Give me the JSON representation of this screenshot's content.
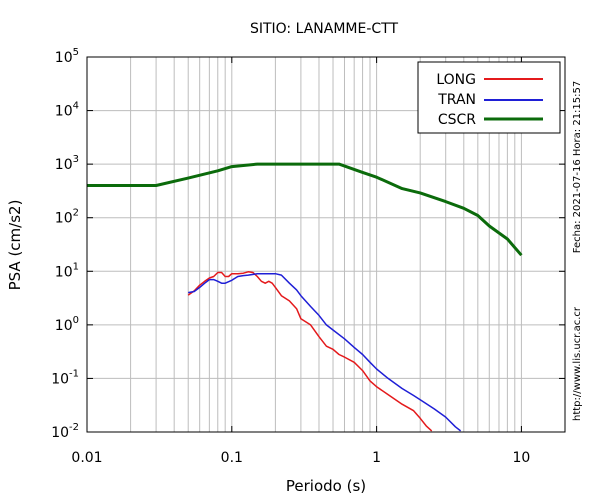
{
  "chart_data": {
    "type": "line",
    "title": "SITIO: LANAMME-CTT",
    "xlabel": "Periodo (s)",
    "ylabel": "PSA (cm/s2)",
    "x_scale": "log",
    "y_scale": "log",
    "xlim": [
      0.01,
      20
    ],
    "ylim": [
      0.01,
      100000
    ],
    "x_ticks": [
      {
        "value": 0.01,
        "label": "0.01"
      },
      {
        "value": 0.1,
        "label": "0.1"
      },
      {
        "value": 1,
        "label": "1"
      },
      {
        "value": 10,
        "label": "10"
      }
    ],
    "y_ticks": [
      {
        "value": 0.01,
        "base": "10",
        "exp": "-2"
      },
      {
        "value": 0.1,
        "base": "10",
        "exp": "-1"
      },
      {
        "value": 1,
        "base": "10",
        "exp": "0"
      },
      {
        "value": 10,
        "base": "10",
        "exp": "1"
      },
      {
        "value": 100,
        "base": "10",
        "exp": "2"
      },
      {
        "value": 1000,
        "base": "10",
        "exp": "3"
      },
      {
        "value": 10000,
        "base": "10",
        "exp": "4"
      },
      {
        "value": 100000,
        "base": "10",
        "exp": "5"
      }
    ],
    "grid": true,
    "legend_position": "top-right",
    "series": [
      {
        "name": "LONG",
        "color": "#e41a1c",
        "points": [
          [
            0.05,
            3.6
          ],
          [
            0.055,
            4.3
          ],
          [
            0.06,
            5.5
          ],
          [
            0.065,
            6.5
          ],
          [
            0.07,
            7.5
          ],
          [
            0.075,
            8.0
          ],
          [
            0.08,
            9.5
          ],
          [
            0.085,
            9.5
          ],
          [
            0.09,
            8.0
          ],
          [
            0.095,
            8.0
          ],
          [
            0.1,
            9.0
          ],
          [
            0.11,
            9.0
          ],
          [
            0.12,
            9.2
          ],
          [
            0.13,
            9.8
          ],
          [
            0.14,
            9.5
          ],
          [
            0.15,
            8.0
          ],
          [
            0.16,
            6.5
          ],
          [
            0.17,
            6.0
          ],
          [
            0.18,
            6.5
          ],
          [
            0.19,
            6.0
          ],
          [
            0.2,
            5.0
          ],
          [
            0.22,
            3.5
          ],
          [
            0.25,
            2.8
          ],
          [
            0.28,
            2.0
          ],
          [
            0.3,
            1.3
          ],
          [
            0.35,
            1.0
          ],
          [
            0.4,
            0.6
          ],
          [
            0.45,
            0.4
          ],
          [
            0.5,
            0.35
          ],
          [
            0.55,
            0.28
          ],
          [
            0.6,
            0.25
          ],
          [
            0.7,
            0.2
          ],
          [
            0.8,
            0.14
          ],
          [
            0.9,
            0.09
          ],
          [
            1.0,
            0.07
          ],
          [
            1.2,
            0.05
          ],
          [
            1.5,
            0.033
          ],
          [
            1.8,
            0.025
          ],
          [
            2.0,
            0.018
          ],
          [
            2.2,
            0.013
          ],
          [
            2.4,
            0.0105
          ]
        ]
      },
      {
        "name": "TRAN",
        "color": "#1f1fd6",
        "points": [
          [
            0.05,
            4.0
          ],
          [
            0.055,
            4.2
          ],
          [
            0.06,
            5.0
          ],
          [
            0.065,
            6.0
          ],
          [
            0.07,
            7.0
          ],
          [
            0.075,
            7.0
          ],
          [
            0.08,
            6.5
          ],
          [
            0.085,
            6.0
          ],
          [
            0.09,
            6.0
          ],
          [
            0.1,
            6.8
          ],
          [
            0.11,
            8.0
          ],
          [
            0.12,
            8.3
          ],
          [
            0.13,
            8.5
          ],
          [
            0.15,
            9.0
          ],
          [
            0.18,
            9.0
          ],
          [
            0.2,
            9.0
          ],
          [
            0.22,
            8.5
          ],
          [
            0.25,
            6.0
          ],
          [
            0.28,
            4.5
          ],
          [
            0.3,
            3.5
          ],
          [
            0.35,
            2.2
          ],
          [
            0.4,
            1.5
          ],
          [
            0.45,
            1.0
          ],
          [
            0.5,
            0.8
          ],
          [
            0.6,
            0.55
          ],
          [
            0.7,
            0.38
          ],
          [
            0.8,
            0.28
          ],
          [
            0.9,
            0.2
          ],
          [
            1.0,
            0.15
          ],
          [
            1.2,
            0.1
          ],
          [
            1.5,
            0.065
          ],
          [
            1.8,
            0.048
          ],
          [
            2.0,
            0.04
          ],
          [
            2.5,
            0.027
          ],
          [
            3.0,
            0.019
          ],
          [
            3.5,
            0.0125
          ],
          [
            3.8,
            0.0105
          ]
        ]
      },
      {
        "name": "CSCR",
        "color": "#0b6b0b",
        "points": [
          [
            0.01,
            400
          ],
          [
            0.03,
            400
          ],
          [
            0.05,
            550
          ],
          [
            0.08,
            750
          ],
          [
            0.1,
            900
          ],
          [
            0.15,
            1000
          ],
          [
            0.2,
            1000
          ],
          [
            0.3,
            1000
          ],
          [
            0.55,
            1000
          ],
          [
            0.8,
            700
          ],
          [
            1.0,
            570
          ],
          [
            1.5,
            350
          ],
          [
            2.0,
            290
          ],
          [
            3.0,
            200
          ],
          [
            4.0,
            150
          ],
          [
            5.0,
            110
          ],
          [
            6.0,
            70
          ],
          [
            8.0,
            40
          ],
          [
            10.0,
            20
          ]
        ]
      }
    ],
    "side_text": {
      "date": "Fecha: 2021-07-16  Hora: 21:15:57",
      "url": "http://www.lis.ucr.ac.cr"
    }
  }
}
